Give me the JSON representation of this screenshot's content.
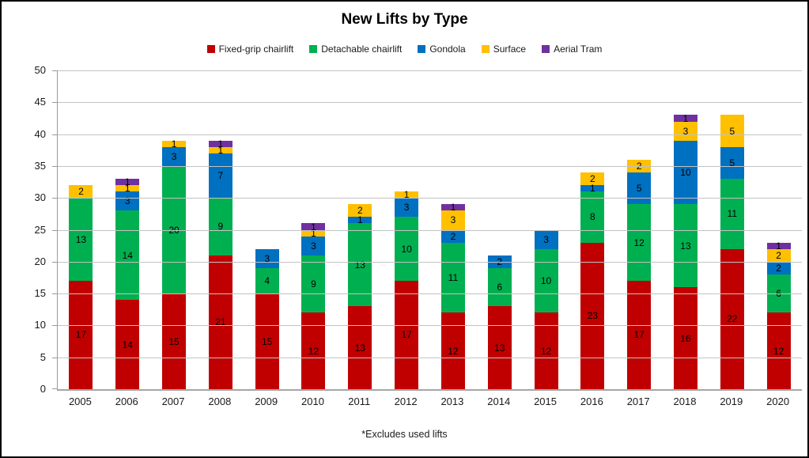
{
  "title": "New Lifts by Type",
  "footnote": "*Excludes used lifts",
  "legend": [
    {
      "label": "Fixed-grip chairlift",
      "color": "#C00000"
    },
    {
      "label": "Detachable chairlift",
      "color": "#00B050"
    },
    {
      "label": "Gondola",
      "color": "#0070C0"
    },
    {
      "label": "Surface",
      "color": "#FFC000"
    },
    {
      "label": "Aerial Tram",
      "color": "#7030A0"
    }
  ],
  "chart_data": {
    "type": "bar",
    "stacked": true,
    "title": "New Lifts by Type",
    "xlabel": "",
    "ylabel": "",
    "ylim": [
      0,
      50
    ],
    "ytick_interval": 5,
    "grid": true,
    "legend_position": "top",
    "data_labels": true,
    "categories": [
      "2005",
      "2006",
      "2007",
      "2008",
      "2009",
      "2010",
      "2011",
      "2012",
      "2013",
      "2014",
      "2015",
      "2016",
      "2017",
      "2018",
      "2019",
      "2020"
    ],
    "series": [
      {
        "name": "Fixed-grip chairlift",
        "color": "#C00000",
        "values": [
          17,
          14,
          15,
          21,
          15,
          12,
          13,
          17,
          12,
          13,
          12,
          23,
          17,
          16,
          22,
          12
        ]
      },
      {
        "name": "Detachable chairlift",
        "color": "#00B050",
        "values": [
          13,
          14,
          20,
          9,
          4,
          9,
          13,
          10,
          11,
          6,
          10,
          8,
          12,
          13,
          11,
          6
        ]
      },
      {
        "name": "Gondola",
        "color": "#0070C0",
        "values": [
          0,
          3,
          3,
          7,
          3,
          3,
          1,
          3,
          2,
          2,
          3,
          1,
          5,
          10,
          5,
          2
        ]
      },
      {
        "name": "Surface",
        "color": "#FFC000",
        "values": [
          2,
          1,
          1,
          1,
          0,
          1,
          2,
          1,
          3,
          0,
          0,
          2,
          2,
          3,
          5,
          2
        ]
      },
      {
        "name": "Aerial Tram",
        "color": "#7030A0",
        "values": [
          0,
          1,
          0,
          1,
          0,
          1,
          0,
          0,
          1,
          0,
          0,
          0,
          0,
          1,
          0,
          1
        ]
      }
    ],
    "totals": [
      32,
      33,
      39,
      39,
      22,
      26,
      29,
      31,
      29,
      21,
      25,
      34,
      36,
      43,
      43,
      23
    ]
  }
}
